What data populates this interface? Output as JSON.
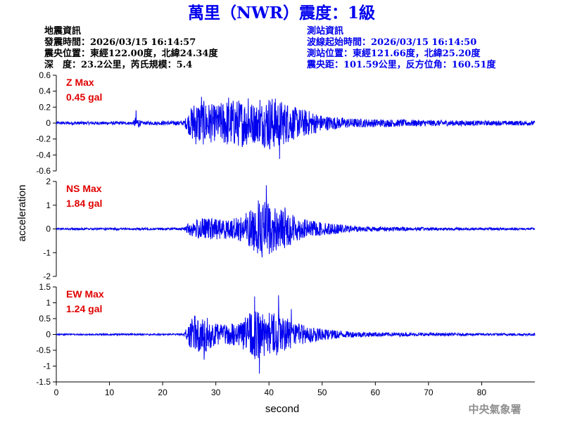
{
  "header": {
    "title": "萬里（NWR）震度：1級",
    "left_info": [
      "地震資訊",
      "發震時間：2026/03/15 16:14:57",
      "震央位置：東經122.00度，北緯24.34度",
      "深　度：23.2公里，芮氏規模：5.4"
    ],
    "right_info": [
      "測站資訊",
      "波線起始時間：2026/03/15 16:14:50",
      "測站位置：東經121.66度，北緯25.20度",
      "震央距：101.59公里，反方位角：160.51度"
    ]
  },
  "credit": "中央氣象署",
  "colors": {
    "trace": "#0000ee",
    "label": "#e00000",
    "info_right": "#0000ee",
    "credit": "#909090"
  },
  "chart_data": {
    "type": "line",
    "xlabel": "second",
    "ylabel": "acceleration",
    "xlim": [
      0,
      90
    ],
    "xticks": [
      "0",
      "10",
      "20",
      "30",
      "40",
      "50",
      "60",
      "70",
      "80"
    ],
    "grid": false,
    "panels": [
      {
        "name": "Z",
        "label_line1": "Z Max",
        "label_line2": "0.45 gal",
        "max": 0.45,
        "ylim": [
          -0.6,
          0.6
        ],
        "yticks": [
          "0.6",
          "0.4",
          "0.2",
          "0",
          "-0.2",
          "-0.4",
          "-0.6"
        ],
        "envelope": {
          "t": [
            0,
            14.5,
            15,
            16,
            24,
            25,
            26,
            28,
            30,
            32,
            35,
            38,
            40,
            42,
            45,
            48,
            50,
            55,
            60,
            70,
            80,
            90
          ],
          "amp": [
            0.02,
            0.02,
            0.1,
            0.02,
            0.03,
            0.15,
            0.28,
            0.28,
            0.22,
            0.3,
            0.3,
            0.24,
            0.35,
            0.3,
            0.2,
            0.15,
            0.1,
            0.06,
            0.05,
            0.04,
            0.03,
            0.03
          ]
        },
        "peaks": [
          {
            "t": 15.0,
            "v": 0.16
          },
          {
            "t": 27.3,
            "v": 0.33
          },
          {
            "t": 32.4,
            "v": 0.32
          },
          {
            "t": 36.1,
            "v": 0.31
          },
          {
            "t": 38.3,
            "v": 0.29
          },
          {
            "t": 42.0,
            "v": -0.45
          },
          {
            "t": 43.5,
            "v": 0.22
          }
        ]
      },
      {
        "name": "NS",
        "label_line1": "NS Max",
        "label_line2": "1.84 gal",
        "max": 1.84,
        "ylim": [
          -2,
          2
        ],
        "yticks": [
          "2",
          "1",
          "0",
          "-1",
          "-2"
        ],
        "envelope": {
          "t": [
            0,
            24,
            25,
            27,
            30,
            33,
            35,
            37,
            39,
            40,
            42,
            44,
            46,
            48,
            50,
            55,
            60,
            70,
            80,
            90
          ],
          "amp": [
            0.04,
            0.05,
            0.3,
            0.45,
            0.45,
            0.4,
            0.6,
            0.9,
            1.2,
            1.1,
            0.9,
            0.7,
            0.45,
            0.35,
            0.28,
            0.15,
            0.1,
            0.07,
            0.05,
            0.05
          ]
        },
        "peaks": [
          {
            "t": 39.5,
            "v": 1.84
          },
          {
            "t": 38.0,
            "v": 1.2
          },
          {
            "t": 38.7,
            "v": -1.2
          },
          {
            "t": 40.5,
            "v": -1.0
          },
          {
            "t": 43.0,
            "v": 0.9
          }
        ]
      },
      {
        "name": "EW",
        "label_line1": "EW Max",
        "label_line2": "1.24 gal",
        "max": 1.24,
        "ylim": [
          -1.5,
          1.5
        ],
        "yticks": [
          "1.5",
          "1",
          "0.5",
          "0",
          "-0.5",
          "-1",
          "-1.5"
        ],
        "envelope": {
          "t": [
            0,
            24,
            25,
            26,
            28,
            30,
            32,
            35,
            37,
            39,
            41,
            43,
            45,
            48,
            50,
            55,
            60,
            70,
            80,
            90
          ],
          "amp": [
            0.02,
            0.03,
            0.4,
            0.6,
            0.6,
            0.35,
            0.3,
            0.45,
            0.8,
            0.7,
            0.7,
            0.55,
            0.35,
            0.25,
            0.18,
            0.1,
            0.07,
            0.05,
            0.04,
            0.04
          ]
        },
        "peaks": [
          {
            "t": 37.3,
            "v": 1.2
          },
          {
            "t": 38.2,
            "v": -1.24
          },
          {
            "t": 41.8,
            "v": 1.24
          },
          {
            "t": 27.8,
            "v": -0.8
          },
          {
            "t": 44.2,
            "v": 0.8
          }
        ]
      }
    ]
  }
}
